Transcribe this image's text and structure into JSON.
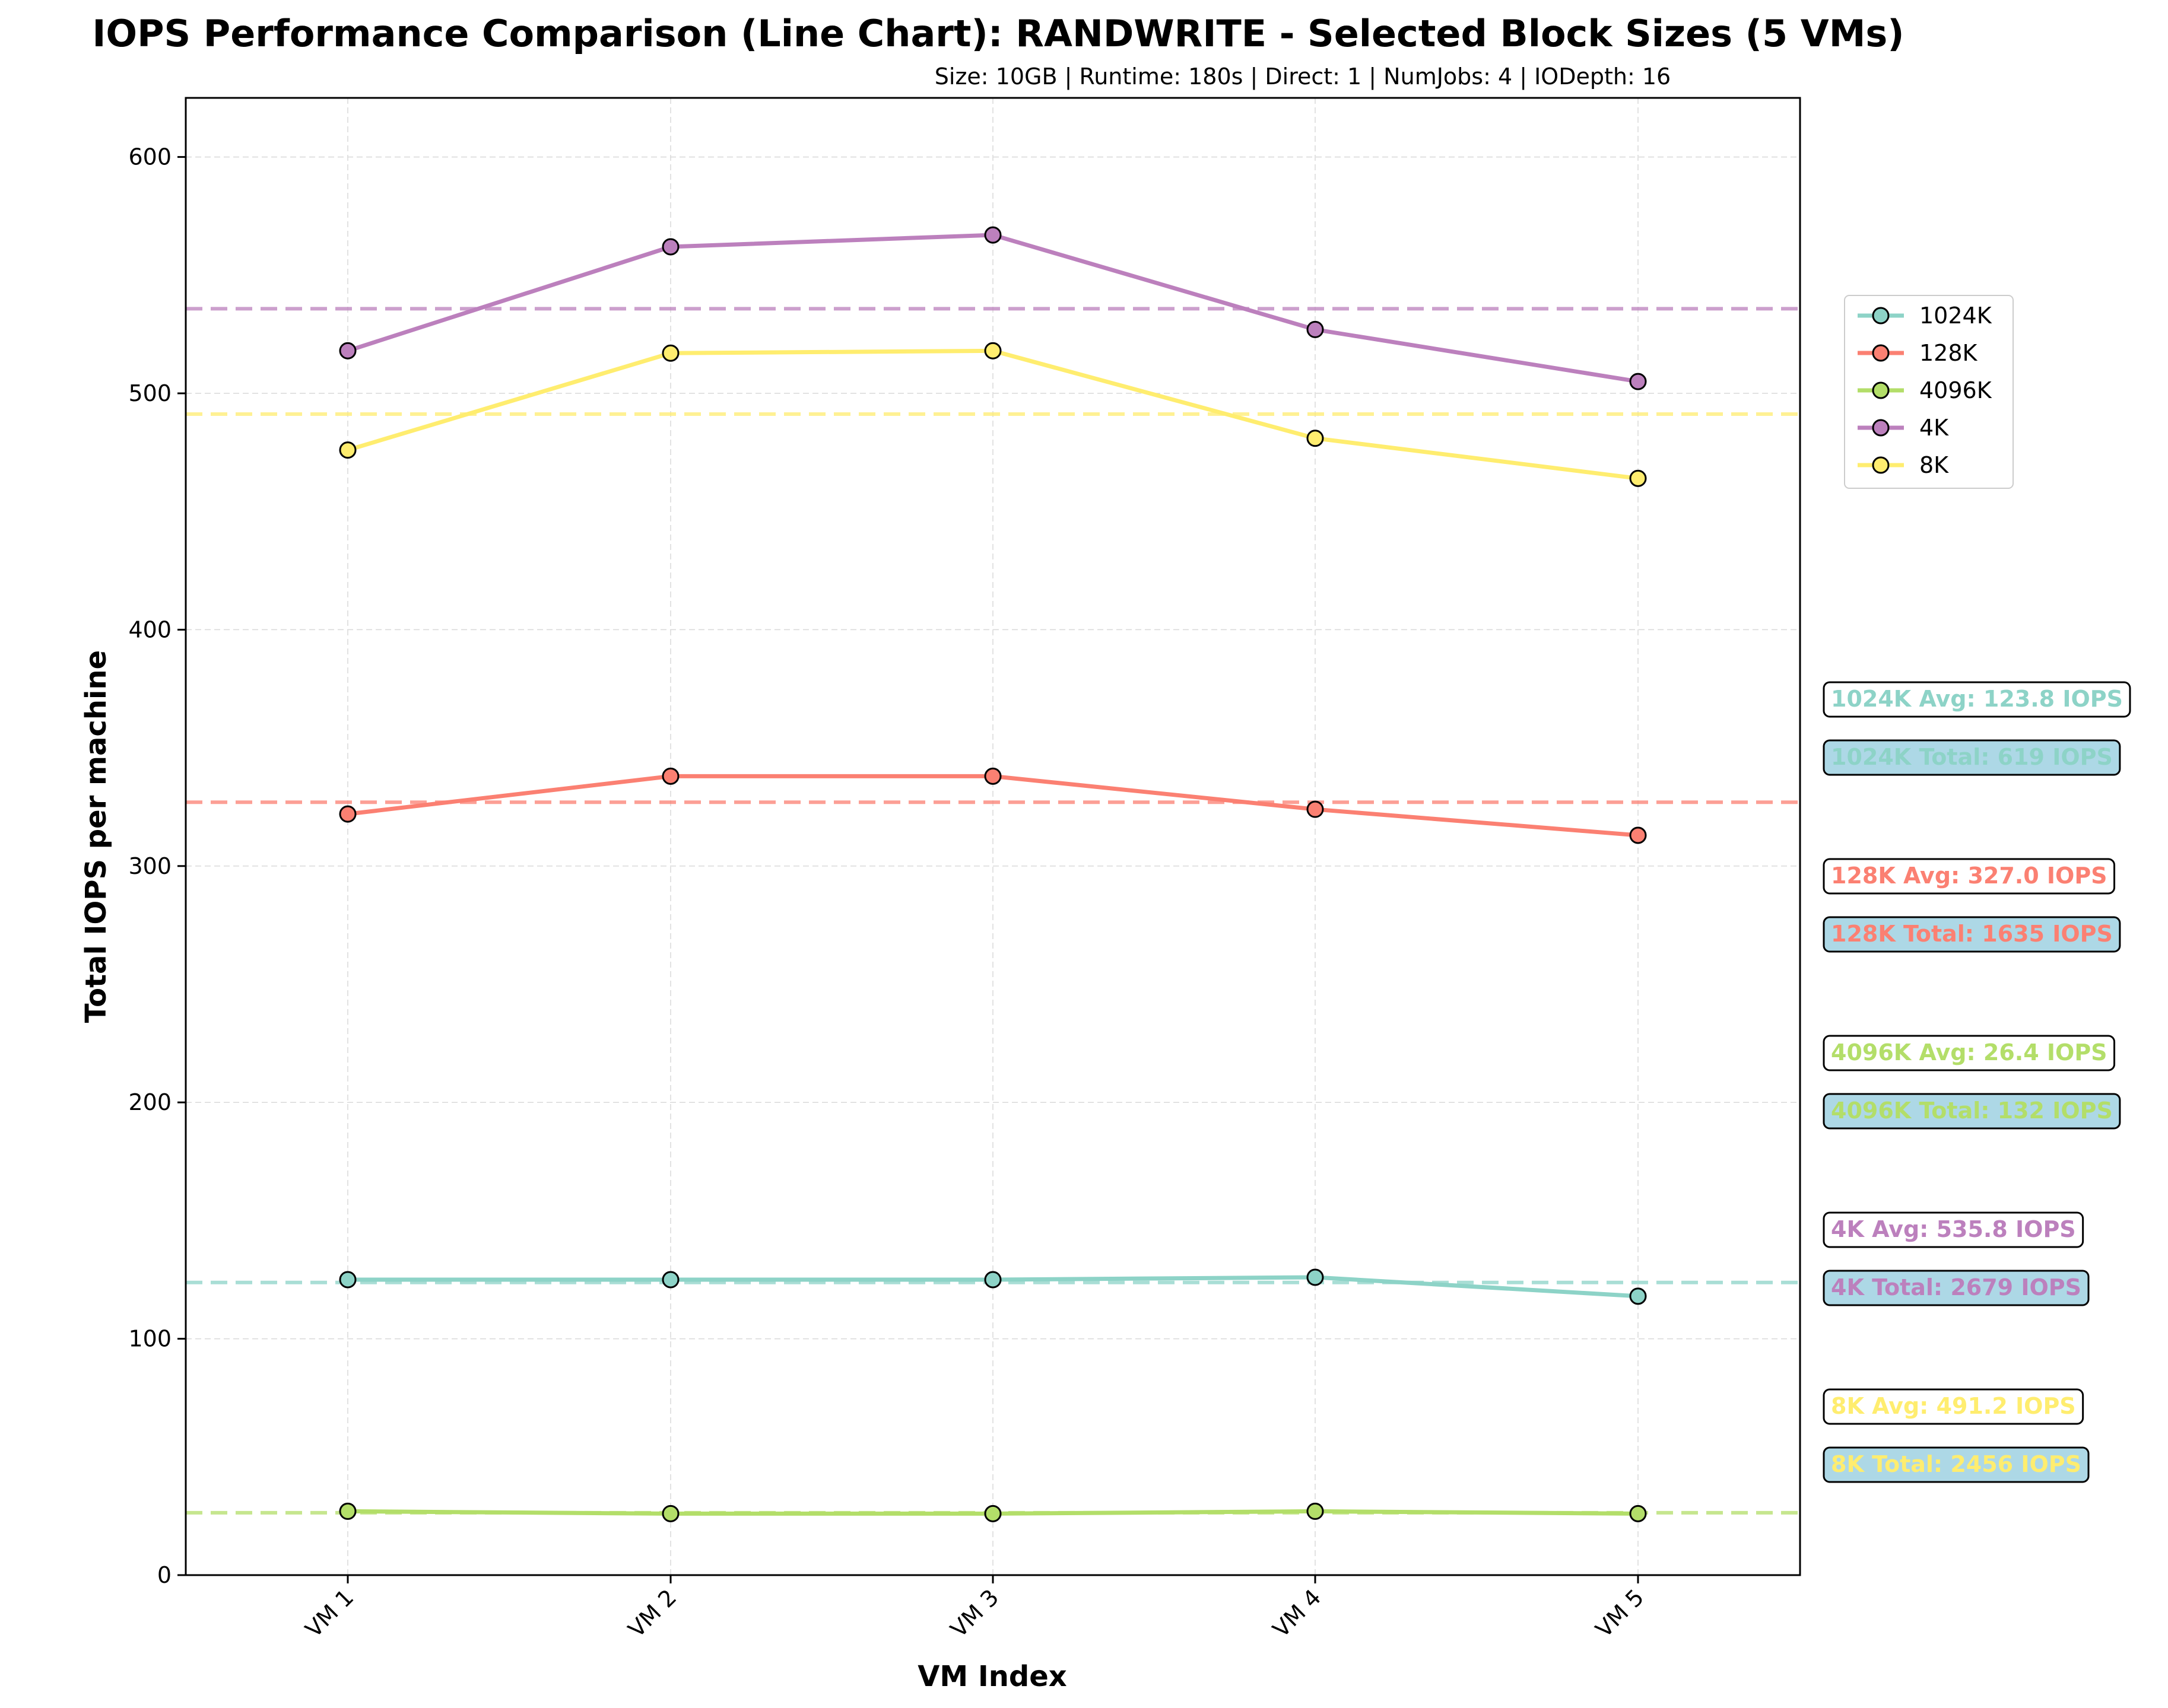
{
  "chart_data": {
    "type": "line",
    "title": "IOPS Performance Comparison (Line Chart): RANDWRITE - Selected Block Sizes (5 VMs)",
    "subtitle": "Size: 10GB | Runtime: 180s | Direct: 1 | NumJobs: 4 | IODepth: 16",
    "xlabel": "VM Index",
    "ylabel": "Total IOPS per machine",
    "categories": [
      "VM 1",
      "VM 2",
      "VM 3",
      "VM 4",
      "VM 5"
    ],
    "ylim": [
      0,
      625
    ],
    "yticks": [
      0,
      100,
      200,
      300,
      400,
      500,
      600
    ],
    "grid": true,
    "legend_position": "upper-right-outside",
    "series": [
      {
        "name": "1024K",
        "color": "#8dd3c7",
        "values": [
          125,
          125,
          125,
          126,
          118
        ],
        "avg": 123.8,
        "avg_label": "1024K Avg: 123.8 IOPS",
        "total_label": "1024K Total: 619 IOPS"
      },
      {
        "name": "128K",
        "color": "#fb8072",
        "values": [
          322,
          338,
          338,
          324,
          313
        ],
        "avg": 327.0,
        "avg_label": "128K Avg: 327.0 IOPS",
        "total_label": "128K Total: 1635 IOPS"
      },
      {
        "name": "4096K",
        "color": "#b3de69",
        "values": [
          27,
          26,
          26,
          27,
          26
        ],
        "avg": 26.4,
        "avg_label": "4096K Avg: 26.4 IOPS",
        "total_label": "4096K Total: 132 IOPS"
      },
      {
        "name": "4K",
        "color": "#bc80bd",
        "values": [
          518,
          562,
          567,
          527,
          505
        ],
        "avg": 535.8,
        "avg_label": "4K Avg: 535.8 IOPS",
        "total_label": "4K Total: 2679 IOPS"
      },
      {
        "name": "8K",
        "color": "#ffed6f",
        "values": [
          476,
          517,
          518,
          481,
          464
        ],
        "avg": 491.2,
        "avg_label": "8K Avg: 491.2 IOPS",
        "total_label": "8K Total: 2456 IOPS"
      }
    ]
  }
}
